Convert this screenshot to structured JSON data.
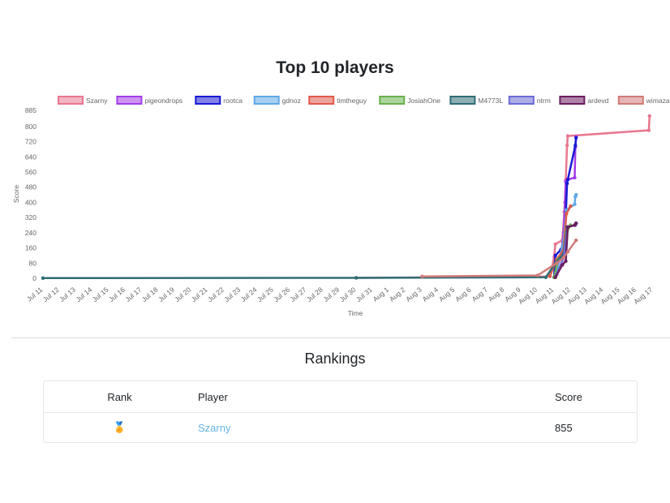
{
  "chart_data": {
    "type": "line",
    "title": "Top 10 players",
    "xlabel": "Time",
    "ylabel": "Score",
    "ylim": [
      0,
      885
    ],
    "y_ticks": [
      0,
      80,
      160,
      240,
      320,
      400,
      480,
      560,
      640,
      720,
      800,
      885
    ],
    "x_tick_labels": [
      "Jul 11",
      "Jul 12",
      "Jul 13",
      "Jul 14",
      "Jul 15",
      "Jul 16",
      "Jul 17",
      "Jul 18",
      "Jul 19",
      "Jul 20",
      "Jul 21",
      "Jul 22",
      "Jul 23",
      "Jul 24",
      "Jul 25",
      "Jul 26",
      "Jul 27",
      "Jul 28",
      "Jul 29",
      "Jul 30",
      "Jul 31",
      "Aug 1",
      "Aug 2",
      "Aug 3",
      "Aug 4",
      "Aug 5",
      "Aug 6",
      "Aug 7",
      "Aug 8",
      "Aug 9",
      "Aug 10",
      "Aug 11",
      "Aug 12",
      "Aug 13",
      "Aug 14",
      "Aug 15",
      "Aug 16",
      "Aug 17"
    ],
    "x_start": "Jul 11",
    "grid": false,
    "legend_position": "top",
    "series": [
      {
        "name": "Szarny",
        "color": "#e8768f",
        "points": [
          [
            "2024-07-30",
            2
          ],
          [
            "2024-08-10 18:00",
            10
          ],
          [
            "2024-08-11 00:00",
            110
          ],
          [
            "2024-08-11 02:00",
            180
          ],
          [
            "2024-08-11 12:00",
            200
          ],
          [
            "2024-08-11 15:00",
            350
          ],
          [
            "2024-08-11 17:00",
            520
          ],
          [
            "2024-08-11 19:00",
            700
          ],
          [
            "2024-08-11 20:00",
            750
          ],
          [
            "2024-08-16 18:00",
            780
          ],
          [
            "2024-08-16 19:00",
            855
          ]
        ]
      },
      {
        "name": "pigeondrops",
        "color": "#a33de8",
        "points": [
          [
            "2024-08-11 01:00",
            10
          ],
          [
            "2024-08-11 10:00",
            120
          ],
          [
            "2024-08-11 14:00",
            240
          ],
          [
            "2024-08-11 16:00",
            400
          ],
          [
            "2024-08-11 17:00",
            510
          ],
          [
            "2024-08-11 19:00",
            520
          ],
          [
            "2024-08-12 06:00",
            530
          ],
          [
            "2024-08-12 07:00",
            690
          ],
          [
            "2024-08-12 08:00",
            745
          ]
        ]
      },
      {
        "name": "rootca",
        "color": "#1a1ad4",
        "points": [
          [
            "2024-08-11 00:00",
            5
          ],
          [
            "2024-08-11 02:00",
            120
          ],
          [
            "2024-08-11 10:00",
            150
          ],
          [
            "2024-08-11 14:00",
            190
          ],
          [
            "2024-08-11 16:00",
            230
          ],
          [
            "2024-08-11 19:00",
            500
          ],
          [
            "2024-08-11 20:00",
            520
          ],
          [
            "2024-08-12 07:00",
            700
          ],
          [
            "2024-08-12 08:00",
            740
          ]
        ]
      },
      {
        "name": "gdnoz",
        "color": "#5ea8e8",
        "points": [
          [
            "2024-08-11 02:00",
            10
          ],
          [
            "2024-08-11 14:00",
            200
          ],
          [
            "2024-08-11 18:00",
            360
          ],
          [
            "2024-08-12 06:00",
            390
          ],
          [
            "2024-08-12 07:00",
            430
          ],
          [
            "2024-08-12 08:00",
            440
          ]
        ]
      },
      {
        "name": "timtheguy",
        "color": "#e05a4a",
        "points": [
          [
            "2024-08-10 18:00",
            12
          ],
          [
            "2024-08-11 04:00",
            100
          ],
          [
            "2024-08-11 14:00",
            150
          ],
          [
            "2024-08-11 18:00",
            340
          ],
          [
            "2024-08-12 00:00",
            380
          ]
        ]
      },
      {
        "name": "JosiahOne",
        "color": "#6ab04c",
        "points": [
          [
            "2024-08-11 00:00",
            5
          ],
          [
            "2024-08-11 06:00",
            100
          ],
          [
            "2024-08-11 14:00",
            120
          ],
          [
            "2024-08-11 18:00",
            240
          ],
          [
            "2024-08-12 00:00",
            280
          ]
        ]
      },
      {
        "name": "M4773L",
        "color": "#2f6d75",
        "points": [
          [
            "2024-07-11 00:00",
            1
          ],
          [
            "2024-07-30",
            2
          ],
          [
            "2024-08-10 12:00",
            5
          ],
          [
            "2024-08-11 02:00",
            80
          ],
          [
            "2024-08-11 14:00",
            130
          ],
          [
            "2024-08-11 19:00",
            270
          ]
        ]
      },
      {
        "name": "ntrm",
        "color": "#6b6bd4",
        "points": [
          [
            "2024-08-11 04:00",
            20
          ],
          [
            "2024-08-11 14:00",
            110
          ],
          [
            "2024-08-11 20:00",
            270
          ],
          [
            "2024-08-12 07:00",
            280
          ],
          [
            "2024-08-12 08:00",
            290
          ]
        ]
      },
      {
        "name": "ardevd",
        "color": "#6b1d5e",
        "points": [
          [
            "2024-08-11 02:00",
            5
          ],
          [
            "2024-08-11 12:00",
            70
          ],
          [
            "2024-08-11 17:00",
            90
          ],
          [
            "2024-08-11 20:00",
            270
          ],
          [
            "2024-08-12 06:00",
            280
          ],
          [
            "2024-08-12 08:00",
            290
          ]
        ]
      },
      {
        "name": "wimazar",
        "color": "#d07a78",
        "points": [
          [
            "2024-08-03 00:00",
            10
          ],
          [
            "2024-08-10 00:00",
            15
          ],
          [
            "2024-08-11 04:00",
            80
          ],
          [
            "2024-08-11 14:00",
            110
          ],
          [
            "2024-08-11 20:00",
            140
          ],
          [
            "2024-08-12 08:00",
            200
          ]
        ]
      }
    ]
  },
  "rankings": {
    "title": "Rankings",
    "headers": {
      "rank": "Rank",
      "player": "Player",
      "score": "Score"
    },
    "rows": [
      {
        "rank_icon": "medal-icon",
        "rank_glyph": "🏅",
        "player": "Szarny",
        "score": "855"
      }
    ]
  }
}
